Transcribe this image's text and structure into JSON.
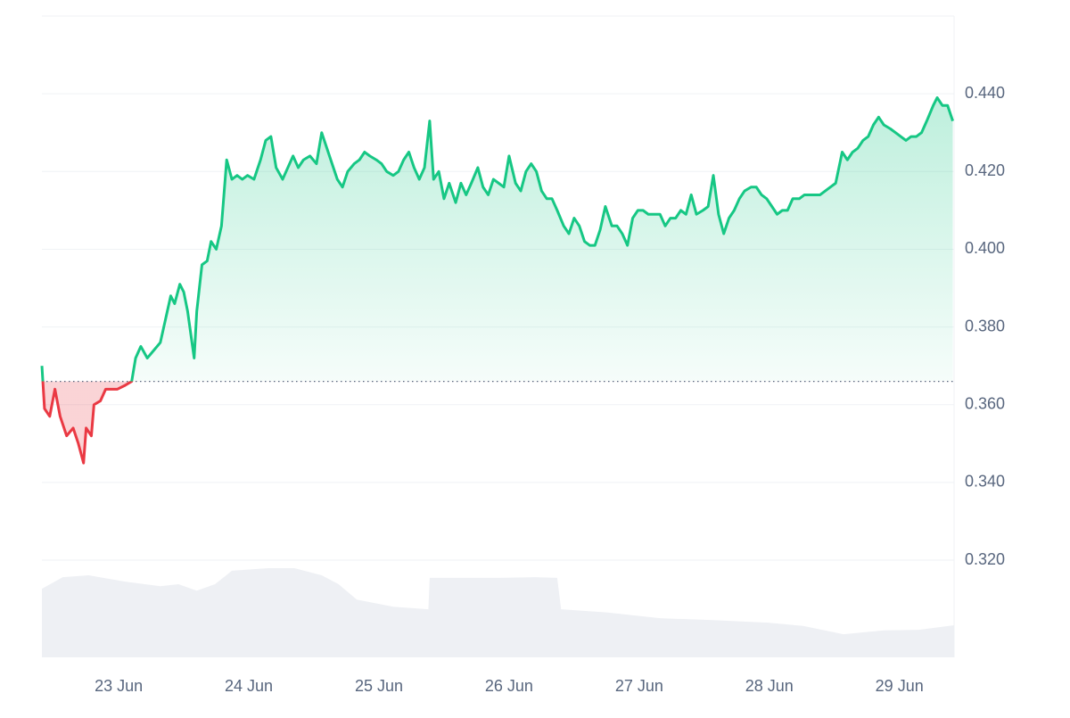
{
  "chart_data": {
    "type": "line",
    "x": [
      22.41,
      22.43,
      22.47,
      22.51,
      22.55,
      22.6,
      22.65,
      22.69,
      22.73,
      22.75,
      22.79,
      22.81,
      22.86,
      22.9,
      22.95,
      22.99,
      23.05,
      23.1,
      23.13,
      23.17,
      23.22,
      23.27,
      23.32,
      23.36,
      23.4,
      23.43,
      23.47,
      23.5,
      23.53,
      23.58,
      23.6,
      23.64,
      23.68,
      23.71,
      23.75,
      23.79,
      23.83,
      23.87,
      23.91,
      23.95,
      23.99,
      24.04,
      24.09,
      24.13,
      24.17,
      24.21,
      24.26,
      24.3,
      24.34,
      24.38,
      24.42,
      24.47,
      24.52,
      24.56,
      24.6,
      24.64,
      24.68,
      24.72,
      24.76,
      24.81,
      24.85,
      24.89,
      24.93,
      24.98,
      25.02,
      25.06,
      25.11,
      25.15,
      25.19,
      25.23,
      25.27,
      25.31,
      25.35,
      25.39,
      25.42,
      25.46,
      25.5,
      25.54,
      25.59,
      25.63,
      25.67,
      25.71,
      25.76,
      25.8,
      25.84,
      25.88,
      25.92,
      25.96,
      26.0,
      26.05,
      26.09,
      26.13,
      26.17,
      26.21,
      26.25,
      26.29,
      26.33,
      26.37,
      26.42,
      26.46,
      26.5,
      26.54,
      26.58,
      26.62,
      26.66,
      26.7,
      26.74,
      26.79,
      26.83,
      26.87,
      26.91,
      26.95,
      26.99,
      27.03,
      27.07,
      27.12,
      27.16,
      27.2,
      27.24,
      27.28,
      27.32,
      27.36,
      27.4,
      27.44,
      27.49,
      27.53,
      27.57,
      27.61,
      27.65,
      27.69,
      27.73,
      27.77,
      27.81,
      27.86,
      27.9,
      27.94,
      27.98,
      28.02,
      28.06,
      28.1,
      28.14,
      28.18,
      28.23,
      28.27,
      28.31,
      28.35,
      28.39,
      28.43,
      28.47,
      28.51,
      28.56,
      28.6,
      28.64,
      28.68,
      28.72,
      28.76,
      28.8,
      28.84,
      28.88,
      28.93,
      28.97,
      29.01,
      29.05,
      29.09,
      29.13,
      29.17,
      29.21,
      29.26,
      29.29,
      29.33,
      29.37,
      29.41
    ],
    "values": [
      0.37,
      0.359,
      0.357,
      0.364,
      0.357,
      0.352,
      0.354,
      0.35,
      0.345,
      0.354,
      0.352,
      0.36,
      0.361,
      0.364,
      0.364,
      0.364,
      0.365,
      0.366,
      0.372,
      0.375,
      0.372,
      0.374,
      0.376,
      0.382,
      0.388,
      0.386,
      0.391,
      0.389,
      0.384,
      0.372,
      0.384,
      0.396,
      0.397,
      0.402,
      0.4,
      0.406,
      0.423,
      0.418,
      0.419,
      0.418,
      0.419,
      0.418,
      0.423,
      0.428,
      0.429,
      0.421,
      0.418,
      0.421,
      0.424,
      0.421,
      0.423,
      0.424,
      0.422,
      0.43,
      0.426,
      0.422,
      0.418,
      0.416,
      0.42,
      0.422,
      0.423,
      0.425,
      0.424,
      0.423,
      0.422,
      0.42,
      0.419,
      0.42,
      0.423,
      0.425,
      0.421,
      0.418,
      0.421,
      0.433,
      0.418,
      0.42,
      0.413,
      0.417,
      0.412,
      0.417,
      0.414,
      0.417,
      0.421,
      0.416,
      0.414,
      0.418,
      0.417,
      0.416,
      0.424,
      0.417,
      0.415,
      0.42,
      0.422,
      0.42,
      0.415,
      0.413,
      0.413,
      0.41,
      0.406,
      0.404,
      0.408,
      0.406,
      0.402,
      0.401,
      0.401,
      0.405,
      0.411,
      0.406,
      0.406,
      0.404,
      0.401,
      0.408,
      0.41,
      0.41,
      0.409,
      0.409,
      0.409,
      0.406,
      0.408,
      0.408,
      0.41,
      0.409,
      0.414,
      0.409,
      0.41,
      0.411,
      0.419,
      0.409,
      0.404,
      0.408,
      0.41,
      0.413,
      0.415,
      0.416,
      0.416,
      0.414,
      0.413,
      0.411,
      0.409,
      0.41,
      0.41,
      0.413,
      0.413,
      0.414,
      0.414,
      0.414,
      0.414,
      0.415,
      0.416,
      0.417,
      0.425,
      0.423,
      0.425,
      0.426,
      0.428,
      0.429,
      0.432,
      0.434,
      0.432,
      0.431,
      0.43,
      0.429,
      0.428,
      0.429,
      0.429,
      0.43,
      0.433,
      0.437,
      0.439,
      0.437,
      0.437,
      0.433
    ],
    "baseline": 0.366,
    "up_color": "#16c784",
    "down_color": "#ea3943",
    "xlim": [
      22.41,
      29.42
    ],
    "xticks": [
      {
        "value": 23,
        "label": "23 Jun"
      },
      {
        "value": 24,
        "label": "24 Jun"
      },
      {
        "value": 25,
        "label": "25 Jun"
      },
      {
        "value": 26,
        "label": "26 Jun"
      },
      {
        "value": 27,
        "label": "27 Jun"
      },
      {
        "value": 28,
        "label": "28 Jun"
      },
      {
        "value": 29,
        "label": "29 Jun"
      }
    ],
    "ylim": [
      0.295,
      0.46
    ],
    "yticks": [
      {
        "value": 0.44,
        "label": "0.440"
      },
      {
        "value": 0.42,
        "label": "0.420"
      },
      {
        "value": 0.4,
        "label": "0.400"
      },
      {
        "value": 0.38,
        "label": "0.380"
      },
      {
        "value": 0.36,
        "label": "0.360"
      },
      {
        "value": 0.34,
        "label": "0.340"
      },
      {
        "value": 0.32,
        "label": "0.320"
      }
    ],
    "grid": true,
    "volume": {
      "color": "#eef0f4",
      "x": [
        22.41,
        22.57,
        22.77,
        23.05,
        23.32,
        23.46,
        23.6,
        23.74,
        23.87,
        24.15,
        24.35,
        24.56,
        24.69,
        24.83,
        25.11,
        25.38,
        25.39,
        25.65,
        25.93,
        26.2,
        26.37,
        26.4,
        26.75,
        27.16,
        27.57,
        27.99,
        28.26,
        28.57,
        28.88,
        29.15,
        29.42
      ],
      "values": [
        10.7,
        12.5,
        12.8,
        11.8,
        11.1,
        11.4,
        10.4,
        11.4,
        13.5,
        13.9,
        13.9,
        12.8,
        11.4,
        9.0,
        7.9,
        7.5,
        12.4,
        12.4,
        12.4,
        12.5,
        12.4,
        7.5,
        7.0,
        6.1,
        5.8,
        5.4,
        4.9,
        3.6,
        4.2,
        4.3,
        5.0
      ]
    },
    "y2lim": [
      0,
      100
    ]
  }
}
